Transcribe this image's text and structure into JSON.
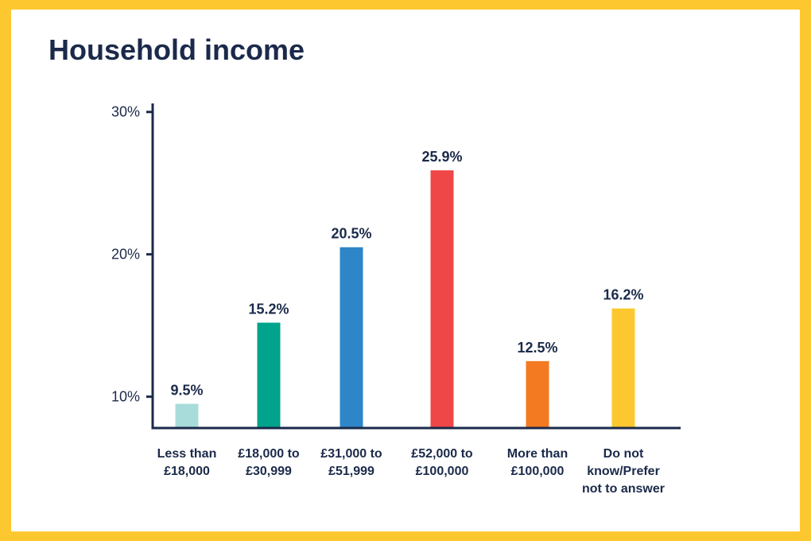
{
  "chart_data": {
    "type": "bar",
    "title": "Household income",
    "xlabel": "",
    "ylabel": "",
    "ylim": [
      7.8,
      30.6
    ],
    "yticks": [
      10,
      20,
      30
    ],
    "ytick_labels": [
      "10%",
      "20%",
      "30%"
    ],
    "categories": [
      [
        "Less than",
        "£18,000"
      ],
      [
        "£18,000 to",
        "£30,999"
      ],
      [
        "£31,000 to",
        "£51,999"
      ],
      [
        "£52,000 to",
        "£100,000"
      ],
      [
        "More than",
        "£100,000"
      ],
      [
        "Do not",
        "know/Prefer",
        "not to answer"
      ]
    ],
    "values": [
      9.5,
      15.2,
      20.5,
      25.9,
      12.5,
      16.2
    ],
    "value_labels": [
      "9.5%",
      "15.2%",
      "20.5%",
      "25.9%",
      "12.5%",
      "16.2%"
    ],
    "colors": [
      "#A8DCDA",
      "#00A38B",
      "#2E86C8",
      "#EF4747",
      "#F37A21",
      "#FDC82F"
    ],
    "grid": false,
    "legend": "none"
  }
}
